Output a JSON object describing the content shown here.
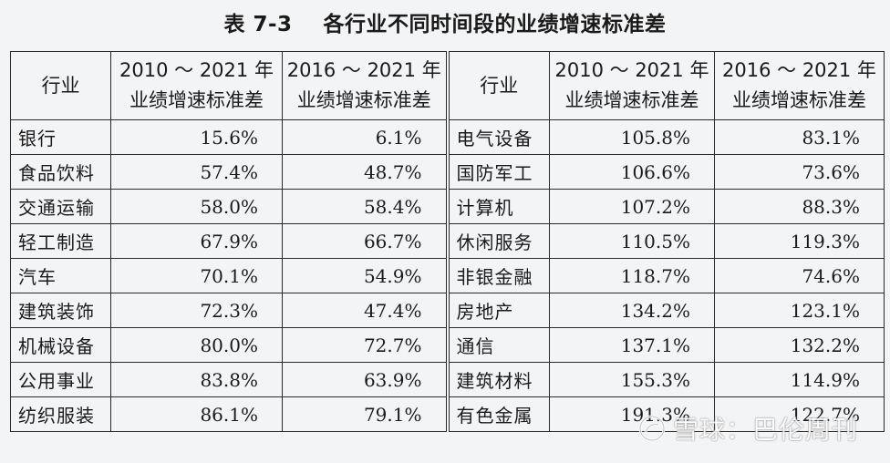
{
  "title": "表 7-3    各行业不同时间段的业绩增速标准差",
  "headers": {
    "industry": "行业",
    "period_a_line1": "2010 ～ 2021 年",
    "period_a_line2": "业绩增速标准差",
    "period_b_line1": "2016 ～ 2021 年",
    "period_b_line2": "业绩增速标准差"
  },
  "left_rows": [
    {
      "industry": "银行",
      "v2010_2021": "15.6%",
      "v2016_2021": "6.1%"
    },
    {
      "industry": "食品饮料",
      "v2010_2021": "57.4%",
      "v2016_2021": "48.7%"
    },
    {
      "industry": "交通运输",
      "v2010_2021": "58.0%",
      "v2016_2021": "58.4%"
    },
    {
      "industry": "轻工制造",
      "v2010_2021": "67.9%",
      "v2016_2021": "66.7%"
    },
    {
      "industry": "汽车",
      "v2010_2021": "70.1%",
      "v2016_2021": "54.9%"
    },
    {
      "industry": "建筑装饰",
      "v2010_2021": "72.3%",
      "v2016_2021": "47.4%"
    },
    {
      "industry": "机械设备",
      "v2010_2021": "80.0%",
      "v2016_2021": "72.7%"
    },
    {
      "industry": "公用事业",
      "v2010_2021": "83.8%",
      "v2016_2021": "63.9%"
    },
    {
      "industry": "纺织服装",
      "v2010_2021": "86.1%",
      "v2016_2021": "79.1%"
    }
  ],
  "right_rows": [
    {
      "industry": "电气设备",
      "v2010_2021": "105.8%",
      "v2016_2021": "83.1%"
    },
    {
      "industry": "国防军工",
      "v2010_2021": "106.6%",
      "v2016_2021": "73.6%"
    },
    {
      "industry": "计算机",
      "v2010_2021": "107.2%",
      "v2016_2021": "88.3%"
    },
    {
      "industry": "休闲服务",
      "v2010_2021": "110.5%",
      "v2016_2021": "119.3%"
    },
    {
      "industry": "非银金融",
      "v2010_2021": "118.7%",
      "v2016_2021": "74.6%"
    },
    {
      "industry": "房地产",
      "v2010_2021": "134.2%",
      "v2016_2021": "123.1%"
    },
    {
      "industry": "通信",
      "v2010_2021": "137.1%",
      "v2016_2021": "132.2%"
    },
    {
      "industry": "建筑材料",
      "v2010_2021": "155.3%",
      "v2016_2021": "114.9%"
    },
    {
      "industry": "有色金属",
      "v2010_2021": "191.3%",
      "v2016_2021": "122.7%"
    }
  ],
  "watermark": {
    "text": "雪球：巴伦周刊",
    "icon": "snowball-logo-icon"
  }
}
